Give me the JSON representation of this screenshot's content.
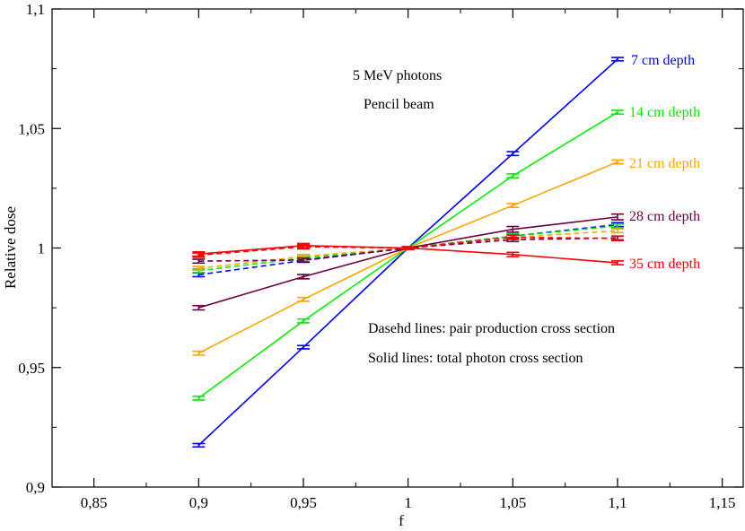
{
  "chart_data": {
    "type": "line",
    "xlabel": "f",
    "ylabel": "Relative dose",
    "xlim": [
      0.83,
      1.16
    ],
    "ylim": [
      0.9,
      1.1
    ],
    "x_ticks": [
      0.85,
      0.9,
      0.95,
      1.0,
      1.05,
      1.1,
      1.15
    ],
    "x_tick_labels": [
      "0,85",
      "0,9",
      "0,95",
      "1",
      "1,05",
      "1,1",
      "1,15"
    ],
    "y_ticks": [
      0.9,
      0.95,
      1.0,
      1.05,
      1.1
    ],
    "y_tick_labels": [
      "0,9",
      "0,95",
      "1",
      "1,05",
      "1,1"
    ],
    "x": [
      0.9,
      0.95,
      1.0,
      1.05,
      1.1
    ],
    "annotations": [
      "5 MeV photons",
      "Pencil beam",
      "Dasehd lines: pair production cross section",
      "Solid lines: total photon cross section"
    ],
    "series": [
      {
        "name": "7 cm depth",
        "label": "7 cm depth",
        "color": "#0000ff",
        "style": "solid",
        "values": [
          0.9175,
          0.9585,
          1.0,
          1.0395,
          1.079
        ],
        "errors": [
          0.0007,
          0.0007,
          0.0005,
          0.0008,
          0.0007
        ]
      },
      {
        "name": "14 cm depth",
        "label": "14 cm depth",
        "color": "#00ee00",
        "style": "solid",
        "values": [
          0.9372,
          0.9695,
          1.0,
          1.0302,
          1.0568
        ],
        "errors": [
          0.0008,
          0.0008,
          0.0005,
          0.0008,
          0.0008
        ]
      },
      {
        "name": "21 cm depth",
        "label": "21 cm depth",
        "color": "#ffa500",
        "style": "solid",
        "values": [
          0.956,
          0.9785,
          1.0,
          1.0178,
          1.036
        ],
        "errors": [
          0.0008,
          0.0008,
          0.0005,
          0.0008,
          0.0008
        ]
      },
      {
        "name": "28 cm depth",
        "label": "28 cm depth",
        "color": "#6b0043",
        "style": "solid",
        "values": [
          0.975,
          0.988,
          1.0,
          1.0078,
          1.013
        ],
        "errors": [
          0.0009,
          0.0009,
          0.0005,
          0.0012,
          0.0012
        ]
      },
      {
        "name": "35 cm depth",
        "label": "35 cm depth",
        "color": "#ff0000",
        "style": "solid",
        "values": [
          0.9975,
          1.001,
          1.0,
          0.9973,
          0.9938
        ],
        "errors": [
          0.0009,
          0.0009,
          0.0005,
          0.0009,
          0.0008
        ]
      },
      {
        "name": "7 cm depth (pair)",
        "label": "",
        "color": "#0000ff",
        "style": "dashed",
        "values": [
          0.9888,
          0.9948,
          1.0,
          1.005,
          1.0098
        ],
        "errors": [
          0.0008,
          0.0008,
          0.0005,
          0.0008,
          0.0008
        ]
      },
      {
        "name": "14 cm depth (pair)",
        "label": "",
        "color": "#00ee00",
        "style": "dashed",
        "values": [
          0.9905,
          0.9958,
          1.0,
          1.005,
          1.0092
        ],
        "errors": [
          0.0008,
          0.0008,
          0.0005,
          0.0008,
          0.0008
        ]
      },
      {
        "name": "21 cm depth (pair)",
        "label": "",
        "color": "#ffa500",
        "style": "dashed",
        "values": [
          0.9915,
          0.9965,
          1.0,
          1.0045,
          1.0072
        ],
        "errors": [
          0.0008,
          0.0008,
          0.0005,
          0.0008,
          0.0008
        ]
      },
      {
        "name": "28 cm depth (pair)",
        "label": "",
        "color": "#6b0043",
        "style": "dashed",
        "values": [
          0.9945,
          0.995,
          1.0,
          1.0035,
          1.0042
        ],
        "errors": [
          0.0008,
          0.0008,
          0.0005,
          0.0008,
          0.0008
        ]
      },
      {
        "name": "35 cm depth (pair)",
        "label": "",
        "color": "#ff0000",
        "style": "dashed",
        "values": [
          0.997,
          1.0005,
          1.0,
          1.0045,
          1.004
        ],
        "errors": [
          0.0009,
          0.0009,
          0.0005,
          0.0009,
          0.0009
        ]
      }
    ]
  }
}
